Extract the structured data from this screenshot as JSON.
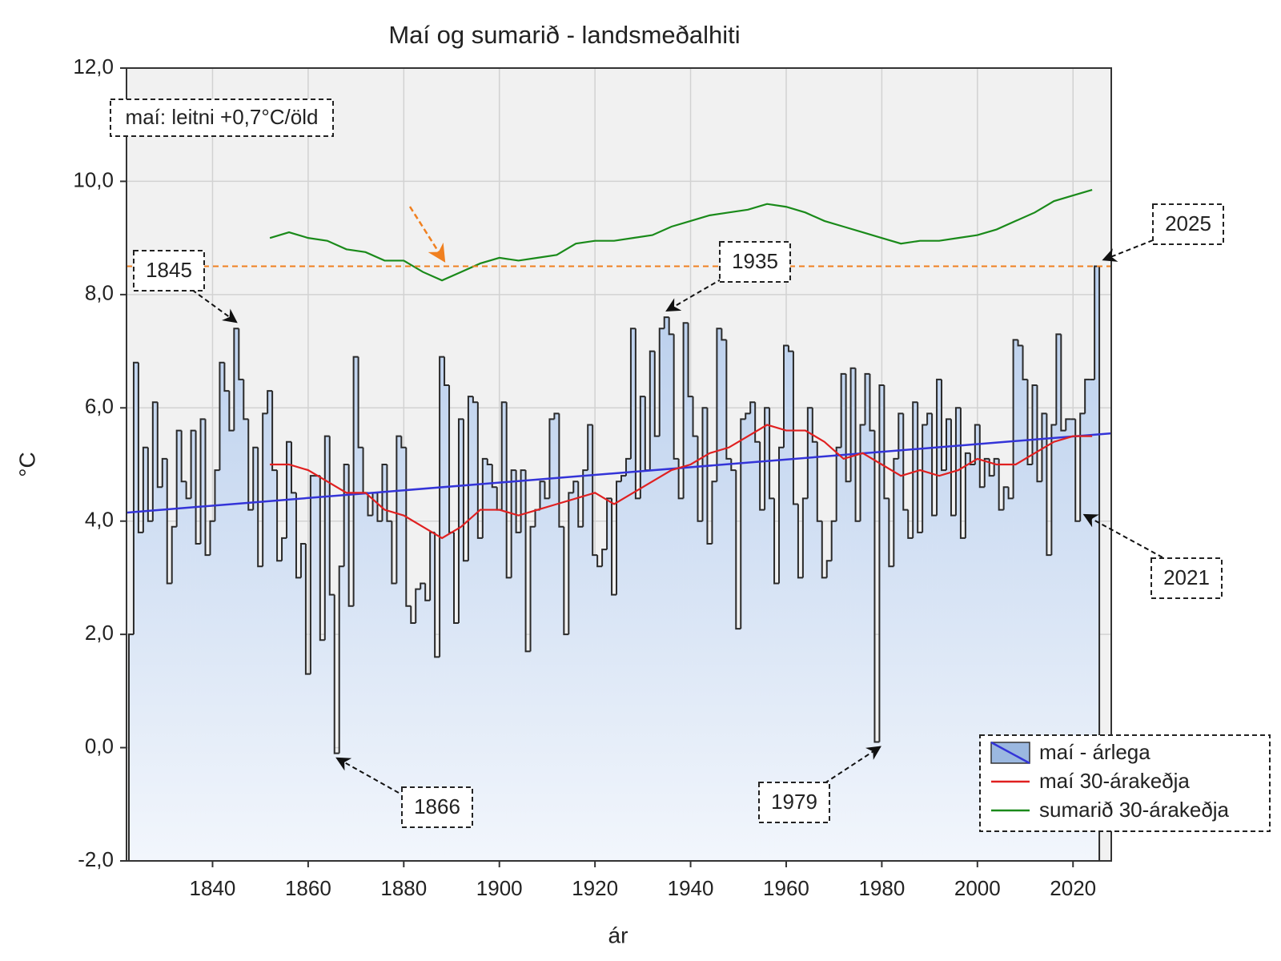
{
  "chart_data": {
    "type": "step-area",
    "title": "Maí og sumarið - landsmeðalhiti",
    "x_label": "ár",
    "y_label": "°C",
    "xlim": [
      1822,
      2028
    ],
    "ylim": [
      -2,
      12
    ],
    "xticks": [
      1840,
      1860,
      1880,
      1900,
      1920,
      1940,
      1960,
      1980,
      2000,
      2020
    ],
    "yticks": [
      {
        "value": -2,
        "label": "-2,0"
      },
      {
        "value": 0,
        "label": "0,0"
      },
      {
        "value": 2,
        "label": "2,0"
      },
      {
        "value": 4,
        "label": "4,0"
      },
      {
        "value": 6,
        "label": "6,0"
      },
      {
        "value": 8,
        "label": "8,0"
      },
      {
        "value": 10,
        "label": "10,0"
      },
      {
        "value": 12,
        "label": "12,0"
      }
    ],
    "grid": true,
    "legend": "lower right",
    "note": "maí: leitni +0,7°C/öld",
    "annotations": [
      "1845",
      "1866",
      "1935",
      "1979",
      "2021",
      "2025"
    ],
    "reference_line": {
      "value": 8.5,
      "color": "#f08020"
    },
    "trend": {
      "color": "#3434d8",
      "x": [
        1822,
        2028
      ],
      "values": [
        4.15,
        5.55
      ]
    },
    "series": [
      {
        "name": "maí - árlega",
        "color": "#9bb8e0",
        "x": [
          1823,
          1824,
          1825,
          1826,
          1827,
          1828,
          1829,
          1830,
          1831,
          1832,
          1833,
          1834,
          1835,
          1836,
          1837,
          1838,
          1839,
          1840,
          1841,
          1842,
          1843,
          1844,
          1845,
          1846,
          1847,
          1848,
          1849,
          1850,
          1851,
          1852,
          1853,
          1854,
          1855,
          1856,
          1857,
          1858,
          1859,
          1860,
          1861,
          1862,
          1863,
          1864,
          1865,
          1866,
          1867,
          1868,
          1869,
          1870,
          1871,
          1872,
          1873,
          1874,
          1875,
          1876,
          1877,
          1878,
          1879,
          1880,
          1881,
          1882,
          1883,
          1884,
          1885,
          1886,
          1887,
          1888,
          1889,
          1890,
          1891,
          1892,
          1893,
          1894,
          1895,
          1896,
          1897,
          1898,
          1899,
          1900,
          1901,
          1902,
          1903,
          1904,
          1905,
          1906,
          1907,
          1908,
          1909,
          1910,
          1911,
          1912,
          1913,
          1914,
          1915,
          1916,
          1917,
          1918,
          1919,
          1920,
          1921,
          1922,
          1923,
          1924,
          1925,
          1926,
          1927,
          1928,
          1929,
          1930,
          1931,
          1932,
          1933,
          1934,
          1935,
          1936,
          1937,
          1938,
          1939,
          1940,
          1941,
          1942,
          1943,
          1944,
          1945,
          1946,
          1947,
          1948,
          1949,
          1950,
          1951,
          1952,
          1953,
          1954,
          1955,
          1956,
          1957,
          1958,
          1959,
          1960,
          1961,
          1962,
          1963,
          1964,
          1965,
          1966,
          1967,
          1968,
          1969,
          1970,
          1971,
          1972,
          1973,
          1974,
          1975,
          1976,
          1977,
          1978,
          1979,
          1980,
          1981,
          1982,
          1983,
          1984,
          1985,
          1986,
          1987,
          1988,
          1989,
          1990,
          1991,
          1992,
          1993,
          1994,
          1995,
          1996,
          1997,
          1998,
          1999,
          2000,
          2001,
          2002,
          2003,
          2004,
          2005,
          2006,
          2007,
          2008,
          2009,
          2010,
          2011,
          2012,
          2013,
          2014,
          2015,
          2016,
          2017,
          2018,
          2019,
          2020,
          2021,
          2022,
          2023,
          2024,
          2025
        ],
        "values": [
          2.0,
          6.8,
          3.8,
          5.3,
          4.0,
          6.1,
          4.6,
          5.1,
          2.9,
          3.9,
          5.6,
          4.7,
          4.4,
          5.6,
          3.6,
          5.8,
          3.4,
          4.0,
          4.9,
          6.8,
          6.3,
          5.6,
          7.4,
          6.5,
          5.8,
          4.2,
          5.3,
          3.2,
          5.9,
          6.3,
          4.9,
          3.3,
          3.7,
          5.4,
          4.5,
          3.0,
          3.6,
          1.3,
          4.8,
          4.8,
          1.9,
          5.5,
          2.7,
          -0.1,
          3.2,
          5.0,
          2.5,
          6.9,
          5.3,
          4.5,
          4.1,
          4.5,
          4.0,
          5.0,
          4.0,
          2.9,
          5.5,
          5.3,
          2.5,
          2.2,
          2.8,
          2.9,
          2.6,
          3.8,
          1.6,
          6.9,
          6.4,
          3.8,
          2.2,
          5.8,
          3.3,
          6.2,
          6.1,
          3.7,
          5.1,
          5.0,
          4.6,
          4.2,
          6.1,
          3.0,
          4.9,
          3.8,
          4.9,
          1.7,
          3.9,
          4.2,
          4.7,
          4.4,
          5.8,
          5.9,
          3.9,
          2.0,
          4.5,
          4.7,
          3.9,
          4.9,
          5.7,
          3.4,
          3.2,
          3.5,
          4.4,
          2.7,
          4.7,
          4.8,
          5.1,
          7.4,
          4.4,
          6.2,
          4.9,
          7.0,
          5.5,
          7.4,
          7.6,
          7.3,
          5.1,
          4.4,
          7.5,
          6.2,
          5.5,
          4.0,
          6.0,
          3.6,
          4.7,
          7.4,
          7.2,
          5.1,
          4.9,
          2.1,
          5.8,
          5.9,
          6.1,
          5.4,
          4.2,
          6.0,
          4.4,
          2.9,
          5.3,
          7.1,
          7.0,
          4.3,
          3.0,
          4.4,
          6.0,
          5.4,
          4.0,
          3.0,
          3.3,
          4.0,
          5.3,
          6.6,
          4.7,
          6.7,
          4.0,
          5.7,
          6.6,
          5.6,
          0.1,
          6.4,
          4.4,
          3.2,
          5.1,
          5.9,
          4.2,
          3.7,
          6.1,
          3.8,
          5.7,
          5.9,
          4.1,
          6.5,
          4.9,
          5.8,
          4.1,
          6.0,
          3.7,
          5.2,
          5.0,
          5.7,
          4.6,
          5.1,
          4.8,
          5.1,
          4.2,
          4.6,
          4.4,
          7.2,
          7.1,
          6.5,
          5.0,
          6.4,
          4.7,
          5.9,
          3.4,
          5.7,
          7.3,
          5.6,
          5.8,
          5.8,
          4.0,
          5.9,
          6.5,
          6.5,
          8.5
        ]
      },
      {
        "name": "maí 30-árakeðja",
        "color": "#e02020",
        "x": [
          1852,
          1856,
          1860,
          1864,
          1868,
          1872,
          1876,
          1880,
          1884,
          1888,
          1892,
          1896,
          1900,
          1904,
          1908,
          1912,
          1916,
          1920,
          1924,
          1928,
          1932,
          1936,
          1940,
          1944,
          1948,
          1952,
          1956,
          1960,
          1964,
          1968,
          1972,
          1976,
          1980,
          1984,
          1988,
          1992,
          1996,
          2000,
          2004,
          2008,
          2012,
          2016,
          2020,
          2024
        ],
        "values": [
          5.0,
          5.0,
          4.9,
          4.7,
          4.5,
          4.5,
          4.2,
          4.1,
          3.9,
          3.7,
          3.9,
          4.2,
          4.2,
          4.1,
          4.2,
          4.3,
          4.4,
          4.5,
          4.3,
          4.5,
          4.7,
          4.9,
          5.0,
          5.2,
          5.3,
          5.5,
          5.7,
          5.6,
          5.6,
          5.4,
          5.1,
          5.2,
          5.0,
          4.8,
          4.9,
          4.8,
          4.9,
          5.1,
          5.0,
          5.0,
          5.2,
          5.4,
          5.5,
          5.5
        ]
      },
      {
        "name": "sumarið 30-árakeðja",
        "color": "#1a8a1a",
        "x": [
          1852,
          1856,
          1860,
          1864,
          1868,
          1872,
          1876,
          1880,
          1884,
          1888,
          1892,
          1896,
          1900,
          1904,
          1908,
          1912,
          1916,
          1920,
          1924,
          1928,
          1932,
          1936,
          1940,
          1944,
          1948,
          1952,
          1956,
          1960,
          1964,
          1968,
          1972,
          1976,
          1980,
          1984,
          1988,
          1992,
          1996,
          2000,
          2004,
          2008,
          2012,
          2016,
          2020,
          2024
        ],
        "values": [
          9.0,
          9.1,
          9.0,
          8.95,
          8.8,
          8.75,
          8.6,
          8.6,
          8.4,
          8.25,
          8.4,
          8.55,
          8.65,
          8.6,
          8.65,
          8.7,
          8.9,
          8.95,
          8.95,
          9.0,
          9.05,
          9.2,
          9.3,
          9.4,
          9.45,
          9.5,
          9.6,
          9.55,
          9.45,
          9.3,
          9.2,
          9.1,
          9.0,
          8.9,
          8.95,
          8.95,
          9.0,
          9.05,
          9.15,
          9.3,
          9.45,
          9.65,
          9.75,
          9.85
        ]
      }
    ]
  }
}
